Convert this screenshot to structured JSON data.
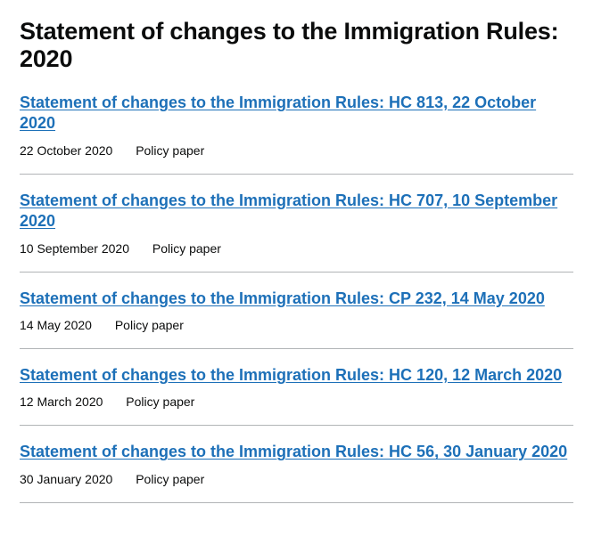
{
  "page": {
    "title": "Statement of changes to the Immigration Rules: 2020"
  },
  "colors": {
    "text": "#0b0c0c",
    "link": "#1d70b8",
    "divider": "#b1b4b6",
    "background": "#ffffff"
  },
  "documents": [
    {
      "title": "Statement of changes to the Immigration Rules: HC 813, 22 October 2020",
      "date": "22 October 2020",
      "type": "Policy paper"
    },
    {
      "title": "Statement of changes to the Immigration Rules: HC 707, 10 September 2020",
      "date": "10 September 2020",
      "type": "Policy paper"
    },
    {
      "title": "Statement of changes to the Immigration Rules: CP 232, 14 May 2020",
      "date": "14 May 2020",
      "type": "Policy paper"
    },
    {
      "title": "Statement of changes to the Immigration Rules: HC 120, 12 March 2020",
      "date": "12 March 2020",
      "type": "Policy paper"
    },
    {
      "title": "Statement of changes to the Immigration Rules: HC 56, 30 January 2020",
      "date": "30 January 2020",
      "type": "Policy paper"
    }
  ]
}
